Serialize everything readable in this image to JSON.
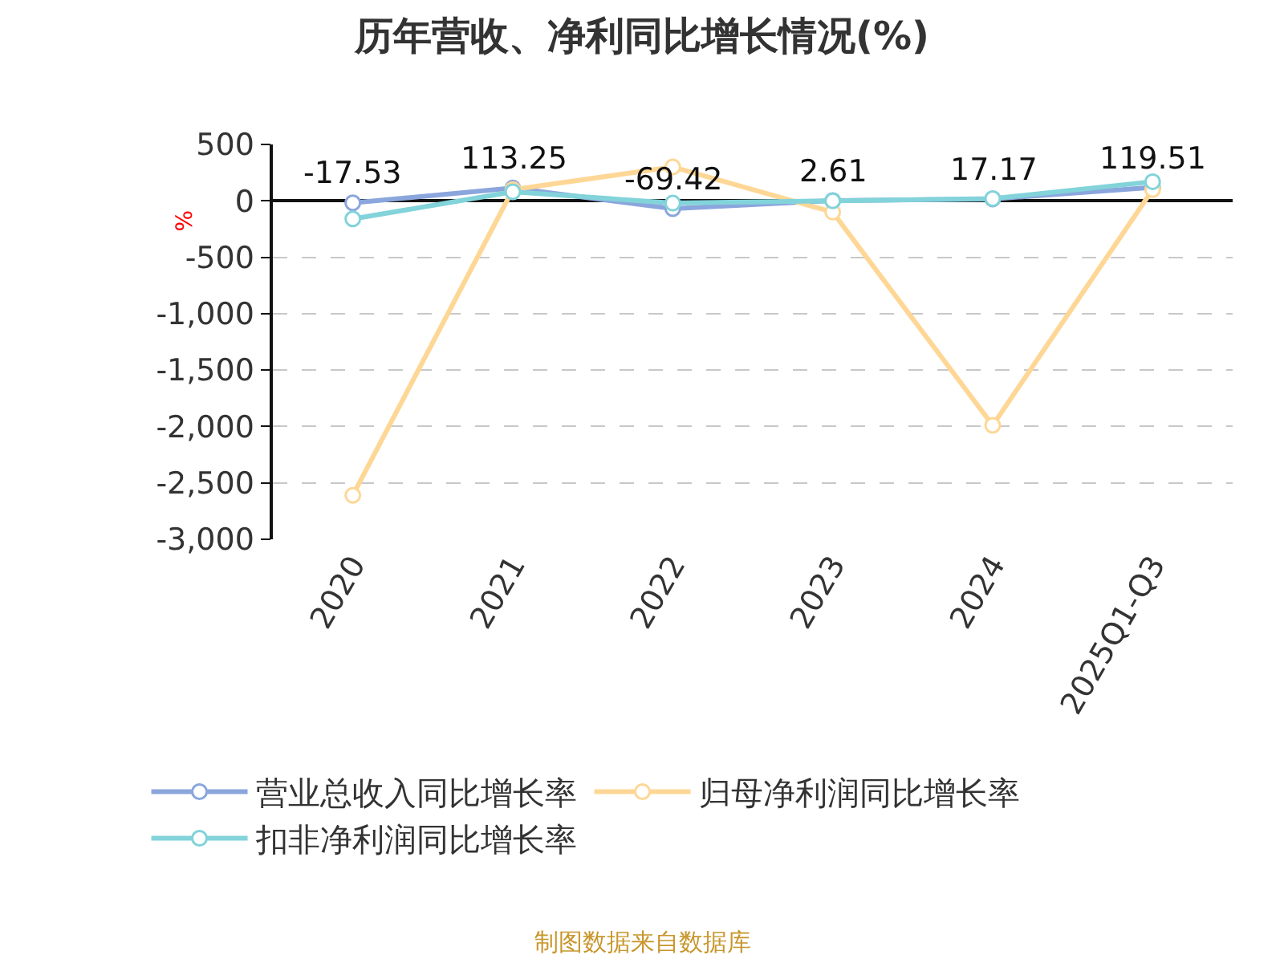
{
  "chart_data": {
    "type": "line",
    "title": "历年营收、净利同比增长情况(%)",
    "ylabel": "%",
    "categories": [
      "2020",
      "2021",
      "2022",
      "2023",
      "2024",
      "2025Q1-Q3"
    ],
    "series": [
      {
        "name": "营业总收入同比增长率",
        "color": "#8ba6dc",
        "values": [
          -17.53,
          113.25,
          -69.42,
          2.61,
          17.17,
          119.51
        ],
        "value_labels": [
          "-17.53",
          "113.25",
          "-69.42",
          "2.61",
          "17.17",
          "119.51"
        ]
      },
      {
        "name": "归母净利润同比增长率",
        "color": "#fed796",
        "values": [
          -2610,
          100,
          300,
          -100,
          -1990,
          100
        ]
      },
      {
        "name": "扣非净利润同比增长率",
        "color": "#82d3da",
        "values": [
          -160,
          80,
          -20,
          0,
          20,
          170
        ]
      }
    ],
    "ylim": [
      -3000,
      500
    ],
    "yticks": [
      500,
      0,
      -500,
      {
        "value": -1000,
        "label": "-1,000"
      },
      {
        "value": -1500,
        "label": "-1,500"
      },
      {
        "value": -2000,
        "label": "-2,000"
      },
      {
        "value": -2500,
        "label": "-2,500"
      },
      {
        "value": -3000,
        "label": "-3,000"
      }
    ],
    "grid": "y",
    "legend": "bottom",
    "marker": "circle",
    "line_style": "solid",
    "annotations": [
      "制图数据来自数据库"
    ]
  }
}
